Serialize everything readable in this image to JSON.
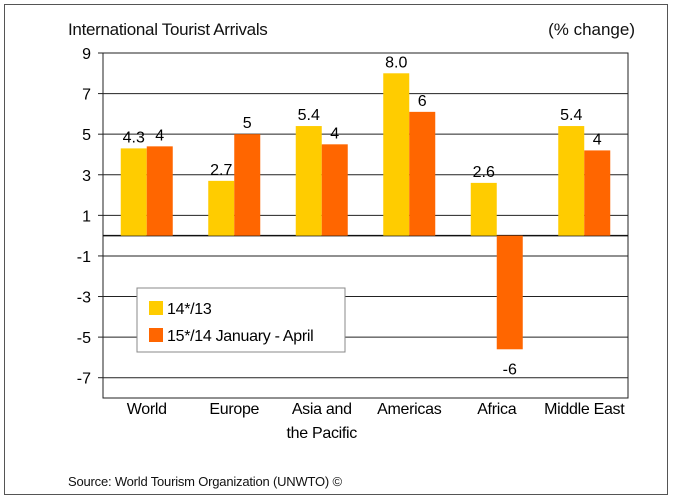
{
  "chart_data": {
    "type": "bar",
    "title": "International Tourist Arrivals",
    "unit_label": "(% change)",
    "source": "Source: World Tourism Organization (UNWTO) ©",
    "categories": [
      "World",
      "Europe",
      "Asia and the Pacific",
      "Americas",
      "Africa",
      "Middle East"
    ],
    "category_lines": [
      [
        "World"
      ],
      [
        "Europe"
      ],
      [
        "Asia and",
        "the Pacific"
      ],
      [
        "Americas"
      ],
      [
        "Africa"
      ],
      [
        "Middle East"
      ]
    ],
    "series": [
      {
        "name": "14*/13",
        "values": [
          4.3,
          2.7,
          5.4,
          8.0,
          2.6,
          5.4
        ],
        "labels": [
          "4.3",
          "2.7",
          "5.4",
          "8.0",
          "2.6",
          "5.4"
        ],
        "color": "#FFCC00"
      },
      {
        "name": "15*/14 January - April",
        "values": [
          4.4,
          5.0,
          4.5,
          6.1,
          -5.6,
          4.2
        ],
        "labels": [
          "4",
          "5",
          "4",
          "6",
          "-6",
          "4"
        ],
        "color": "#FF6600"
      }
    ],
    "ylim": [
      -8,
      9
    ],
    "yticks": [
      9,
      7,
      5,
      3,
      1,
      -1,
      -3,
      -5,
      -7
    ],
    "grid": true,
    "legend_position": "bottom-left"
  }
}
